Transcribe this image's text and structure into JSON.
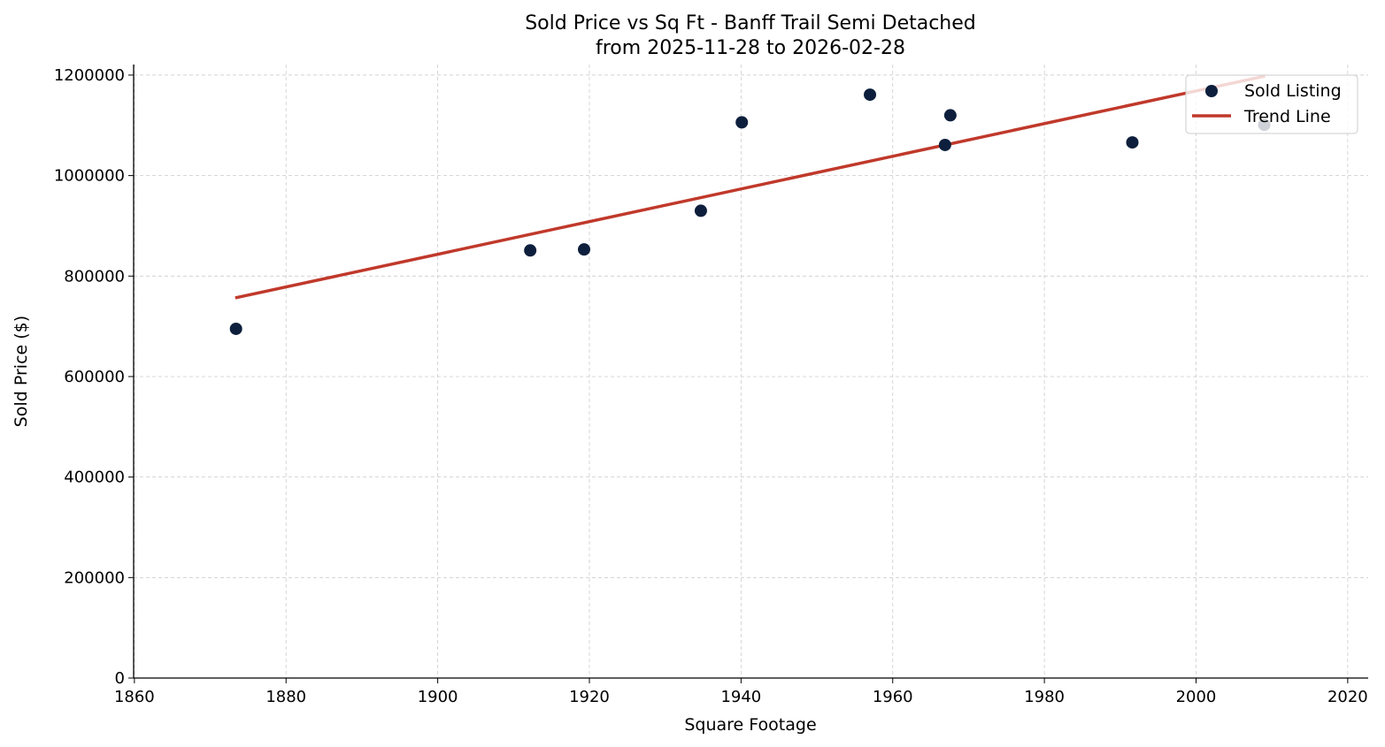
{
  "chart_data": {
    "type": "scatter",
    "title": "Sold Price vs Sq Ft - Banff Trail Semi Detached",
    "subtitle": "from 2025-11-28 to 2026-02-28",
    "xlabel": "Square Footage",
    "ylabel": "Sold Price ($)",
    "xlim": [
      1859.9,
      2022.7
    ],
    "ylim": [
      0,
      1221000
    ],
    "xticks": [
      1860,
      1880,
      1900,
      1920,
      1940,
      1960,
      1980,
      2000,
      2020
    ],
    "yticks": [
      0,
      200000,
      400000,
      600000,
      800000,
      1000000,
      1200000
    ],
    "grid": true,
    "legend_position": "top-right",
    "series": [
      {
        "name": "Sold Listing",
        "type": "scatter",
        "color": "#0d1f3c",
        "x": [
          1873.4,
          1912.2,
          1919.3,
          1934.7,
          1940.1,
          1957.0,
          1966.9,
          1967.6,
          1991.6,
          2009.0
        ],
        "y": [
          695000,
          851000,
          853000,
          930000,
          1106000,
          1161000,
          1061000,
          1120000,
          1066000,
          1101000
        ]
      },
      {
        "name": "Trend Line",
        "type": "line",
        "color": "#c0392b",
        "x": [
          1873.3,
          2009.1
        ],
        "y": [
          756600,
          1198000
        ]
      }
    ]
  }
}
